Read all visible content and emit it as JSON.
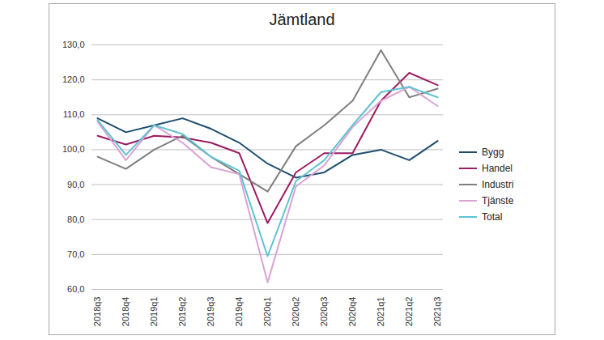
{
  "chart_data": {
    "type": "line",
    "title": "Jämtland",
    "categories": [
      "2018q3",
      "2018q4",
      "2019q1",
      "2019q2",
      "2019q3",
      "2019q4",
      "2020q1",
      "2020q2",
      "2020q3",
      "2020q4",
      "2021q1",
      "2021q2",
      "2021q3"
    ],
    "series": [
      {
        "name": "Bygg",
        "color": "#1f4e6e",
        "values": [
          109,
          105,
          107,
          109,
          106,
          102,
          96,
          92,
          93.5,
          98.5,
          100,
          97,
          102.5
        ]
      },
      {
        "name": "Handel",
        "color": "#9b1b62",
        "values": [
          104,
          101.5,
          104,
          103.5,
          102,
          99,
          79,
          93.5,
          99,
          99,
          114,
          122,
          118.5
        ]
      },
      {
        "name": "Industri",
        "color": "#7f7f7f",
        "values": [
          98,
          94.5,
          100,
          104,
          98,
          93,
          88,
          101,
          107,
          114,
          128.5,
          115,
          117.5
        ]
      },
      {
        "name": "Tjänste",
        "color": "#d9a3d3",
        "values": [
          108,
          97,
          107,
          102,
          95,
          93,
          62,
          89.5,
          95.5,
          106.5,
          114,
          118,
          112.5
        ]
      },
      {
        "name": "Total",
        "color": "#5fc3d3",
        "values": [
          108.5,
          98.5,
          107,
          104.5,
          98,
          94,
          69.5,
          91,
          97,
          107,
          116.5,
          118,
          115
        ]
      }
    ],
    "ylim": [
      60,
      130
    ],
    "yticks": [
      {
        "value": 60,
        "label": "60,0"
      },
      {
        "value": 70,
        "label": "70,0"
      },
      {
        "value": 80,
        "label": "80,0"
      },
      {
        "value": 90,
        "label": "90,0"
      },
      {
        "value": 100,
        "label": "100,0"
      },
      {
        "value": 110,
        "label": "110,0"
      },
      {
        "value": 120,
        "label": "120,0"
      },
      {
        "value": 130,
        "label": "130,0"
      }
    ],
    "grid": true,
    "legend": "right"
  }
}
